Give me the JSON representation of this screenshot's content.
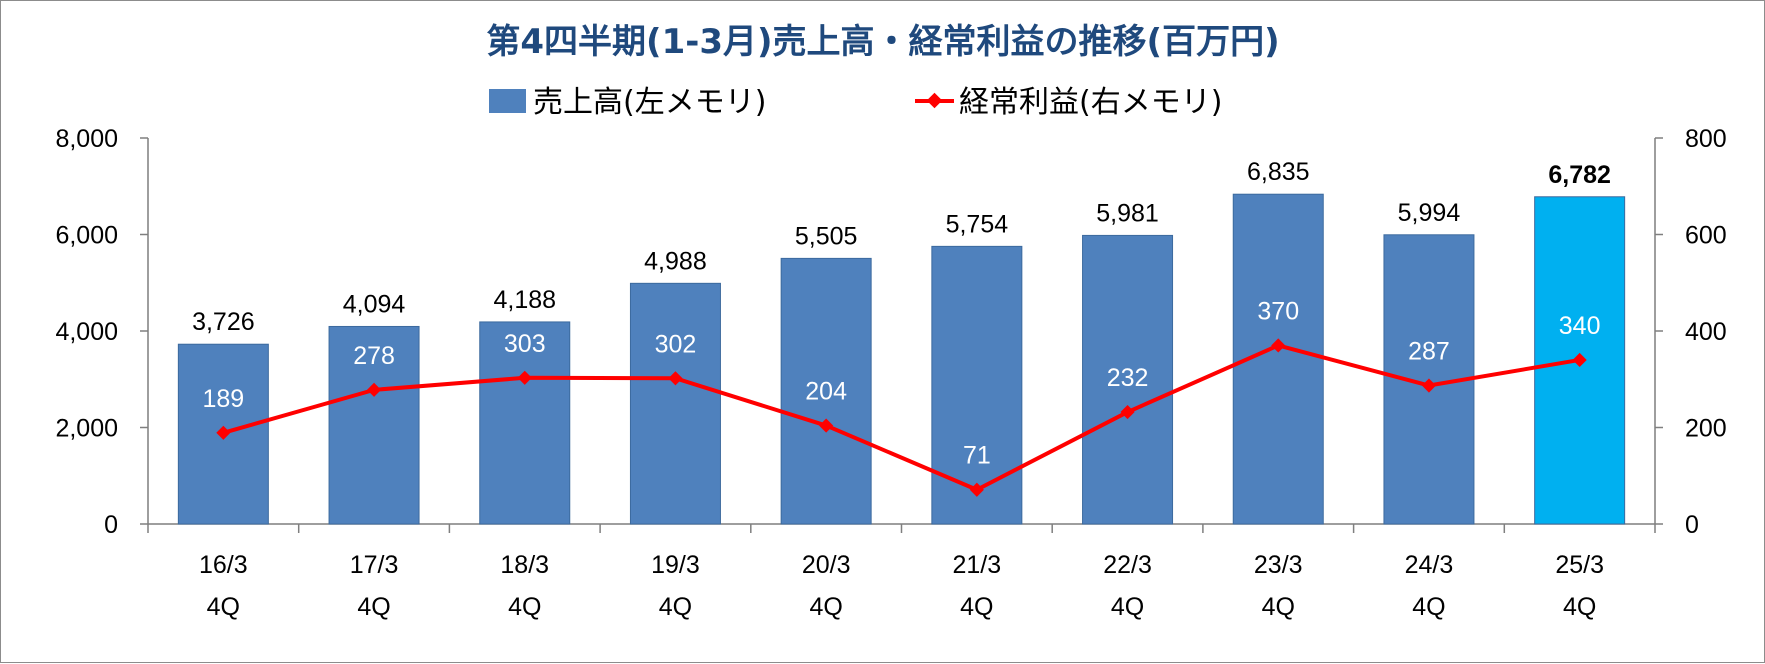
{
  "chart_data": {
    "type": "bar",
    "title": "第4四半期(1-3月)売上高・経常利益の推移(百万円)",
    "categories": [
      "16/3",
      "17/3",
      "18/3",
      "19/3",
      "20/3",
      "21/3",
      "22/3",
      "23/3",
      "24/3",
      "25/3"
    ],
    "category_sublabels": [
      "4Q",
      "4Q",
      "4Q",
      "4Q",
      "4Q",
      "4Q",
      "4Q",
      "4Q",
      "4Q",
      "4Q"
    ],
    "series": [
      {
        "name": "売上高(左メモリ)",
        "type": "bar",
        "axis": "left",
        "values": [
          3726,
          4094,
          4188,
          4988,
          5505,
          5754,
          5981,
          6835,
          5994,
          6782
        ],
        "labels": [
          "3,726",
          "4,094",
          "4,188",
          "4,988",
          "5,505",
          "5,754",
          "5,981",
          "6,835",
          "5,994",
          "6,782"
        ],
        "color": "#4f81bd",
        "highlight_color": "#00b0f0",
        "highlight_index": 9
      },
      {
        "name": "経常利益(右メモリ)",
        "type": "line",
        "axis": "right",
        "values": [
          189,
          278,
          303,
          302,
          204,
          71,
          232,
          370,
          287,
          340
        ],
        "labels": [
          "189",
          "278",
          "303",
          "302",
          "204",
          "71",
          "232",
          "370",
          "287",
          "340"
        ],
        "color": "#ff0000",
        "label_color": "#ffffff",
        "highlight_label_color": "#ff0000",
        "highlight_index": 9
      }
    ],
    "y_left": {
      "min": 0,
      "max": 8000,
      "ticks": [
        "0",
        "2,000",
        "4,000",
        "6,000",
        "8,000"
      ],
      "tick_values": [
        0,
        2000,
        4000,
        6000,
        8000
      ]
    },
    "y_right": {
      "min": 0,
      "max": 800,
      "ticks": [
        "0",
        "200",
        "400",
        "600",
        "800"
      ],
      "tick_values": [
        0,
        200,
        400,
        600,
        800
      ]
    },
    "grid": false,
    "legend_position": "top-center",
    "title_color": "#1f497d"
  }
}
